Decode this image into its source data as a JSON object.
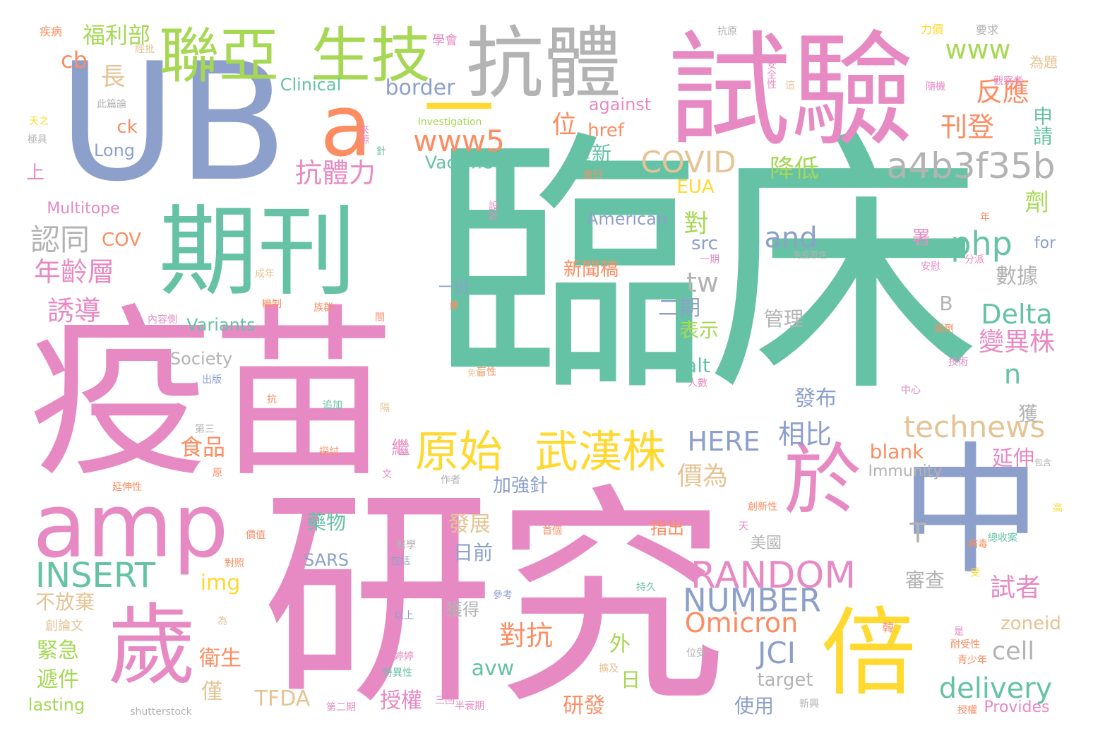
{
  "palette": {
    "green": "#66c2a5",
    "orange": "#fc8d62",
    "blue": "#8da0cb",
    "pink": "#e78ac3",
    "lime": "#a6d854",
    "yellow": "#ffd92f",
    "tan": "#e5c494",
    "gray": "#b3b3b3"
  },
  "words": [
    {
      "text": "臨床",
      "c": "green"
    },
    {
      "text": "研究",
      "c": "pink"
    },
    {
      "text": "疫苗",
      "c": "pink"
    },
    {
      "text": "試驗",
      "c": "pink"
    },
    {
      "text": "UB",
      "c": "blue"
    },
    {
      "text": "期刊",
      "c": "green"
    },
    {
      "text": "抗體",
      "c": "gray"
    },
    {
      "text": "中",
      "c": "blue"
    },
    {
      "text": "歲",
      "c": "pink"
    },
    {
      "text": "amp",
      "c": "pink"
    },
    {
      "text": "倍",
      "c": "yellow"
    },
    {
      "text": "於",
      "c": "pink"
    },
    {
      "text": "生技",
      "c": "lime"
    },
    {
      "text": "聯亞",
      "c": "lime"
    },
    {
      "text": "a",
      "c": "orange"
    },
    {
      "text": "一",
      "c": "yellow"
    },
    {
      "text": "原始",
      "c": "yellow"
    },
    {
      "text": "武漢株",
      "c": "yellow"
    },
    {
      "text": "a4b3f35b",
      "c": "gray"
    },
    {
      "text": "RANDOM",
      "c": "pink"
    },
    {
      "text": "technews",
      "c": "tan"
    },
    {
      "text": "INSERT",
      "c": "green"
    },
    {
      "text": "NUMBER",
      "c": "blue"
    },
    {
      "text": "delivery",
      "c": "green"
    },
    {
      "text": "Omicron",
      "c": "orange"
    },
    {
      "text": "COVID",
      "c": "tan"
    },
    {
      "text": "www5",
      "c": "orange"
    },
    {
      "text": "php",
      "c": "green"
    },
    {
      "text": "HERE",
      "c": "blue"
    },
    {
      "text": "Delta",
      "c": "green"
    },
    {
      "text": "www",
      "c": "lime"
    },
    {
      "text": "JCI",
      "c": "blue"
    },
    {
      "text": "cell",
      "c": "gray"
    },
    {
      "text": "and",
      "c": "blue"
    },
    {
      "text": "tw",
      "c": "gray"
    },
    {
      "text": "抗體力",
      "c": "pink"
    },
    {
      "text": "認同",
      "c": "gray"
    },
    {
      "text": "年齡層",
      "c": "pink"
    },
    {
      "text": "誘導",
      "c": "pink"
    },
    {
      "text": "刊登",
      "c": "orange"
    },
    {
      "text": "反應",
      "c": "orange"
    },
    {
      "text": "降低",
      "c": "lime"
    },
    {
      "text": "相比",
      "c": "blue"
    },
    {
      "text": "價為",
      "c": "tan"
    },
    {
      "text": "變異株",
      "c": "pink"
    },
    {
      "text": "對抗",
      "c": "orange"
    },
    {
      "text": "福利部",
      "c": "lime"
    },
    {
      "text": "cb",
      "c": "orange"
    },
    {
      "text": "長",
      "c": "tan"
    },
    {
      "text": "border",
      "c": "blue"
    },
    {
      "text": "Clinical",
      "c": "green"
    },
    {
      "text": "against",
      "c": "pink"
    },
    {
      "text": "ck",
      "c": "orange"
    },
    {
      "text": "href",
      "c": "orange"
    },
    {
      "text": "Long",
      "c": "blue"
    },
    {
      "text": "Vaccine",
      "c": "green"
    },
    {
      "text": "上",
      "c": "pink"
    },
    {
      "text": "Multitope",
      "c": "pink"
    },
    {
      "text": "COV",
      "c": "orange"
    },
    {
      "text": "EUA",
      "c": "yellow"
    },
    {
      "text": "American",
      "c": "blue"
    },
    {
      "text": "src",
      "c": "blue"
    },
    {
      "text": "二期",
      "c": "blue"
    },
    {
      "text": "Variants",
      "c": "green"
    },
    {
      "text": "表示",
      "c": "lime"
    },
    {
      "text": "alt",
      "c": "green"
    },
    {
      "text": "Society",
      "c": "gray"
    },
    {
      "text": "食品",
      "c": "orange"
    },
    {
      "text": "發布",
      "c": "blue"
    },
    {
      "text": "blank",
      "c": "orange"
    },
    {
      "text": "Immunity",
      "c": "gray"
    },
    {
      "text": "延伸",
      "c": "pink"
    },
    {
      "text": "加強針",
      "c": "blue"
    },
    {
      "text": "藥物",
      "c": "green"
    },
    {
      "text": "發展",
      "c": "tan"
    },
    {
      "text": "日前",
      "c": "blue"
    },
    {
      "text": "SARS",
      "c": "blue"
    },
    {
      "text": "美國",
      "c": "gray"
    },
    {
      "text": "審查",
      "c": "gray"
    },
    {
      "text": "試者",
      "c": "pink"
    },
    {
      "text": "img",
      "c": "yellow"
    },
    {
      "text": "不放棄",
      "c": "tan"
    },
    {
      "text": "獲得",
      "c": "gray"
    },
    {
      "text": "zoneid",
      "c": "tan"
    },
    {
      "text": "緊急",
      "c": "lime"
    },
    {
      "text": "衛生",
      "c": "orange"
    },
    {
      "text": "外",
      "c": "lime"
    },
    {
      "text": "avw",
      "c": "green"
    },
    {
      "text": "遞件",
      "c": "lime"
    },
    {
      "text": "日",
      "c": "lime"
    },
    {
      "text": "target",
      "c": "gray"
    },
    {
      "text": "僅",
      "c": "tan"
    },
    {
      "text": "TFDA",
      "c": "tan"
    },
    {
      "text": "授權",
      "c": "pink"
    },
    {
      "text": "研發",
      "c": "orange"
    },
    {
      "text": "使用",
      "c": "blue"
    },
    {
      "text": "lasting",
      "c": "lime"
    },
    {
      "text": "Provides",
      "c": "pink"
    },
    {
      "text": "數據",
      "c": "gray"
    },
    {
      "text": "管理",
      "c": "gray"
    },
    {
      "text": "新聞稿",
      "c": "orange"
    },
    {
      "text": "重新",
      "c": "green"
    },
    {
      "text": "位",
      "c": "orange"
    },
    {
      "text": "對",
      "c": "lime"
    },
    {
      "text": "申請",
      "c": "green"
    },
    {
      "text": "劑",
      "c": "lime"
    },
    {
      "text": "for",
      "c": "blue"
    },
    {
      "text": "n",
      "c": "green"
    },
    {
      "text": "T",
      "c": "gray"
    },
    {
      "text": "一份",
      "c": "blue"
    },
    {
      "text": "署",
      "c": "pink"
    },
    {
      "text": "繼",
      "c": "pink"
    },
    {
      "text": "獲",
      "c": "gray"
    },
    {
      "text": "指出",
      "c": "orange"
    },
    {
      "text": "疾病",
      "c": "orange"
    },
    {
      "text": "學會",
      "c": "pink"
    },
    {
      "text": "Investigation",
      "c": "lime"
    },
    {
      "text": "抗原",
      "c": "gray"
    },
    {
      "text": "力價",
      "c": "yellow"
    },
    {
      "text": "要求",
      "c": "gray"
    },
    {
      "text": "為題",
      "c": "tan"
    },
    {
      "text": "此篇論",
      "c": "gray"
    },
    {
      "text": "極具",
      "c": "gray"
    },
    {
      "text": "天之",
      "c": "yellow"
    },
    {
      "text": "來源",
      "c": "pink"
    },
    {
      "text": "安全性",
      "c": "pink"
    },
    {
      "text": "觀察者",
      "c": "pink"
    },
    {
      "text": "設計",
      "c": "pink"
    },
    {
      "text": "成年",
      "c": "tan"
    },
    {
      "text": "機制",
      "c": "orange"
    },
    {
      "text": "族群",
      "c": "orange"
    },
    {
      "text": "內容側",
      "c": "pink"
    },
    {
      "text": "出版",
      "c": "blue"
    },
    {
      "text": "抗",
      "c": "orange"
    },
    {
      "text": "追加",
      "c": "green"
    },
    {
      "text": "第三",
      "c": "gray"
    },
    {
      "text": "探討",
      "c": "orange"
    },
    {
      "text": "原",
      "c": "orange"
    },
    {
      "text": "作者",
      "c": "gray"
    },
    {
      "text": "文",
      "c": "pink"
    },
    {
      "text": "延伸性",
      "c": "orange"
    },
    {
      "text": "價值",
      "c": "orange"
    },
    {
      "text": "對照",
      "c": "orange"
    },
    {
      "text": "醫學",
      "c": "gray"
    },
    {
      "text": "包括",
      "c": "blue"
    },
    {
      "text": "參考",
      "c": "blue"
    },
    {
      "text": "以上",
      "c": "blue"
    },
    {
      "text": "婷婷",
      "c": "pink"
    },
    {
      "text": "特異性",
      "c": "green"
    },
    {
      "text": "第二期",
      "c": "pink"
    },
    {
      "text": "半衰期",
      "c": "pink"
    },
    {
      "text": "shutterstock",
      "c": "gray"
    },
    {
      "text": "持久",
      "c": "green"
    },
    {
      "text": "免疫原性",
      "c": "gray"
    },
    {
      "text": "安慰",
      "c": "pink"
    },
    {
      "text": "分派",
      "c": "pink"
    },
    {
      "text": "中心",
      "c": "pink"
    },
    {
      "text": "技術",
      "c": "pink"
    },
    {
      "text": "人數",
      "c": "pink"
    },
    {
      "text": "包含",
      "c": "gray"
    },
    {
      "text": "創新性",
      "c": "orange"
    },
    {
      "text": "高",
      "c": "yellow"
    },
    {
      "text": "病毒",
      "c": "orange"
    },
    {
      "text": "總收案",
      "c": "green"
    },
    {
      "text": "耐受性",
      "c": "orange"
    },
    {
      "text": "青少年",
      "c": "orange"
    },
    {
      "text": "新興",
      "c": "gray"
    },
    {
      "text": "位受",
      "c": "gray"
    },
    {
      "text": "擴及",
      "c": "tan"
    },
    {
      "text": "兩劑",
      "c": "orange"
    },
    {
      "text": "盲性",
      "c": "orange"
    },
    {
      "text": "免疫",
      "c": "tan"
    },
    {
      "text": "隨機",
      "c": "pink"
    },
    {
      "text": "進行",
      "c": "orange"
    },
    {
      "text": "創論文",
      "c": "tan"
    },
    {
      "text": "針",
      "c": "green"
    },
    {
      "text": "量",
      "c": "orange"
    },
    {
      "text": "間",
      "c": "orange"
    },
    {
      "text": "B",
      "c": "gray"
    },
    {
      "text": "一期",
      "c": "pink"
    },
    {
      "text": "隔",
      "c": "tan"
    },
    {
      "text": "受",
      "c": "yellow"
    },
    {
      "text": "三回",
      "c": "pink"
    },
    {
      "text": "年",
      "c": "orange"
    },
    {
      "text": "韓",
      "c": "orange"
    },
    {
      "text": "是",
      "c": "pink"
    },
    {
      "text": "天",
      "c": "pink"
    },
    {
      "text": "為",
      "c": "tan"
    },
    {
      "text": "授權",
      "c": "orange"
    },
    {
      "text": "首個",
      "c": "orange"
    },
    {
      "text": "這",
      "c": "tan"
    },
    {
      "text": "經批",
      "c": "tan"
    },
    {
      "text": "經典",
      "c": "tan"
    }
  ]
}
